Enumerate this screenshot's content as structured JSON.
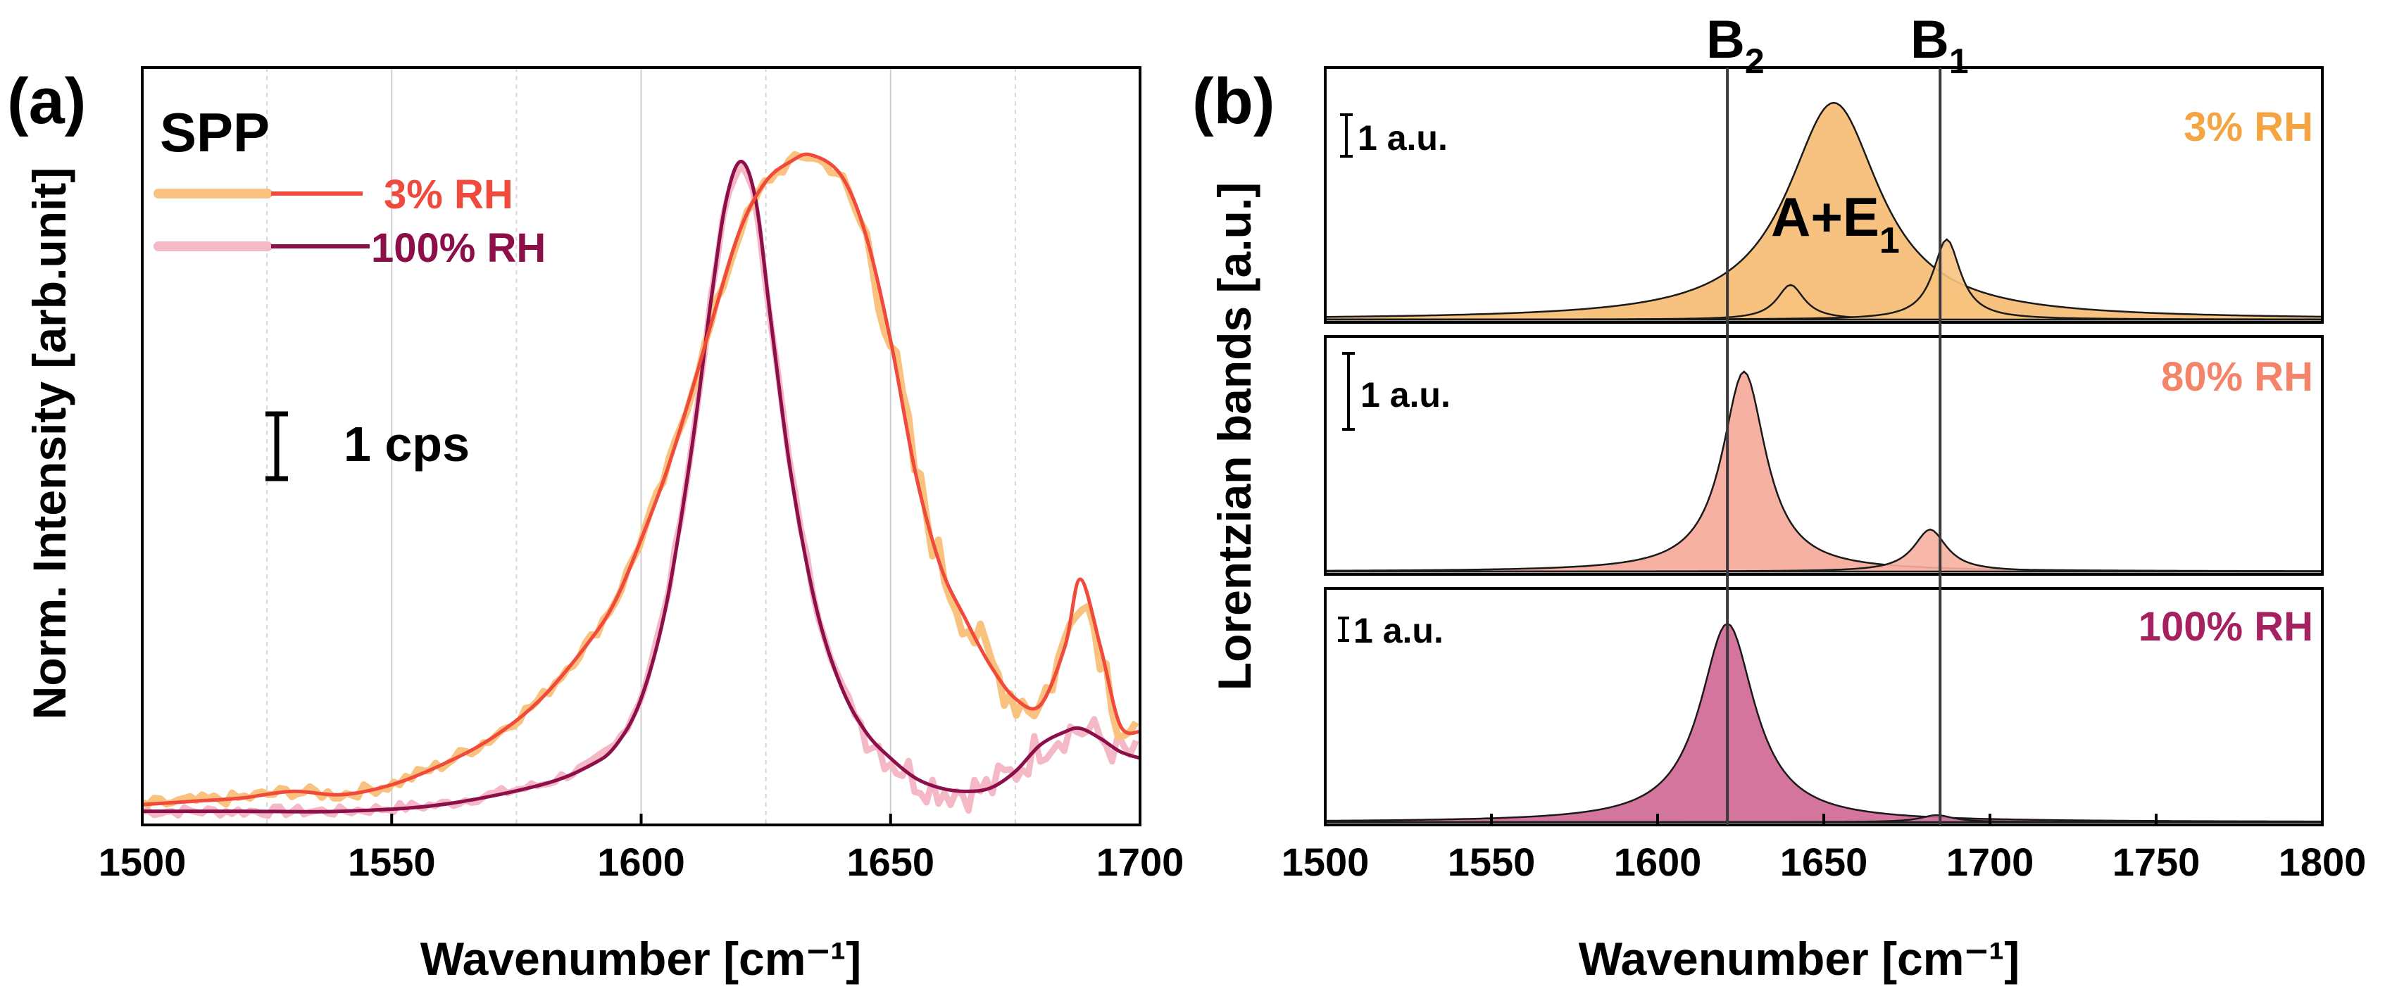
{
  "chart_data": [
    {
      "panel": "(a)",
      "type": "line",
      "title": "SPP",
      "xlabel": "Wavenumber [cm⁻¹]",
      "ylabel": "Norm. Intensity [arb.unit]",
      "xlim": [
        1500,
        1700
      ],
      "ylim": [
        0,
        1
      ],
      "xticks": [
        1500,
        1550,
        1600,
        1650,
        1700
      ],
      "scale_bar_label": "1 cps",
      "legend": [
        "3% RH",
        "100% RH"
      ],
      "colors": {
        "rh3_raw": "#f9c37f",
        "rh3_fit": "#ef4a3c",
        "rh100_raw": "#f4b8c6",
        "rh100_fit": "#8c0f4a"
      },
      "series": [
        {
          "name": "3% RH",
          "kind": "fit",
          "x": [
            1500,
            1510,
            1520,
            1530,
            1540,
            1550,
            1560,
            1570,
            1580,
            1590,
            1595,
            1600,
            1605,
            1610,
            1615,
            1620,
            1625,
            1630,
            1634,
            1640,
            1645,
            1650,
            1655,
            1660,
            1665,
            1670,
            1675,
            1680,
            1685,
            1688,
            1692,
            1696,
            1700
          ],
          "y": [
            0.02,
            0.025,
            0.03,
            0.04,
            0.035,
            0.05,
            0.08,
            0.12,
            0.18,
            0.27,
            0.33,
            0.42,
            0.52,
            0.64,
            0.77,
            0.89,
            0.96,
            0.99,
            1.0,
            0.97,
            0.88,
            0.72,
            0.52,
            0.38,
            0.3,
            0.23,
            0.18,
            0.17,
            0.26,
            0.36,
            0.26,
            0.14,
            0.13
          ]
        },
        {
          "name": "100% RH",
          "kind": "fit",
          "x": [
            1500,
            1520,
            1540,
            1560,
            1580,
            1590,
            1595,
            1600,
            1605,
            1610,
            1614,
            1617,
            1620,
            1623,
            1626,
            1630,
            1635,
            1640,
            1645,
            1650,
            1655,
            1660,
            1665,
            1670,
            1675,
            1680,
            1685,
            1688,
            1692,
            1696,
            1700
          ],
          "y": [
            0.01,
            0.01,
            0.01,
            0.02,
            0.05,
            0.08,
            0.11,
            0.18,
            0.32,
            0.55,
            0.78,
            0.93,
            0.99,
            0.93,
            0.75,
            0.52,
            0.32,
            0.2,
            0.13,
            0.09,
            0.06,
            0.045,
            0.04,
            0.045,
            0.07,
            0.11,
            0.13,
            0.135,
            0.12,
            0.1,
            0.09
          ]
        }
      ]
    },
    {
      "panel": "(b)",
      "type": "area",
      "xlabel": "Wavenumber [cm⁻¹]",
      "ylabel": "Lorentzian bands [a.u.]",
      "xlim": [
        1500,
        1800
      ],
      "xticks": [
        1500,
        1550,
        1600,
        1650,
        1700,
        1750,
        1800
      ],
      "reference_lines": [
        {
          "label": "B",
          "subscript": "2",
          "x": 1621
        },
        {
          "label": "B",
          "subscript": "1",
          "x": 1685
        }
      ],
      "band_label": {
        "main": "A+E",
        "subscript": "1"
      },
      "subplots": [
        {
          "label": "3% RH",
          "scale_bar": "1 a.u.",
          "fill": "#f7c27f",
          "label_color": "#f5a442",
          "bands": [
            {
              "center": 1653,
              "hwhm": 17,
              "amp": 1.0
            },
            {
              "center": 1640,
              "hwhm": 5,
              "amp": 0.16
            },
            {
              "center": 1687,
              "hwhm": 5,
              "amp": 0.37
            }
          ]
        },
        {
          "label": "80% RH",
          "scale_bar": "1 a.u.",
          "fill": "#f7b1a2",
          "label_color": "#f48469",
          "bands": [
            {
              "center": 1626,
              "hwhm": 8,
              "amp": 1.0
            },
            {
              "center": 1682,
              "hwhm": 6,
              "amp": 0.21
            }
          ]
        },
        {
          "label": "100% RH",
          "scale_bar": "1 a.u.",
          "fill": "#d4759e",
          "label_color": "#a6215f",
          "bands": [
            {
              "center": 1621,
              "hwhm": 10,
              "amp": 1.0
            },
            {
              "center": 1684,
              "hwhm": 6,
              "amp": 0.035
            }
          ]
        }
      ]
    }
  ]
}
